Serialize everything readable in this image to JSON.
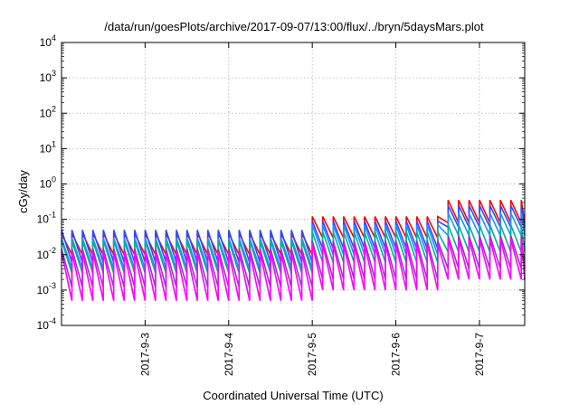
{
  "chart_data": {
    "type": "line",
    "title": "/data/run/goesPlots/archive/2017-09-07/13:00/flux/../bryn/5daysMars.plot",
    "xlabel": "Coordinated Universal Time (UTC)",
    "ylabel": "cGy/day",
    "yscale": "log",
    "ylim": [
      0.0001,
      10000
    ],
    "y_ticks": [
      {
        "base": "10",
        "exp": "-4",
        "value": 0.0001
      },
      {
        "base": "10",
        "exp": "-3",
        "value": 0.001
      },
      {
        "base": "10",
        "exp": "-2",
        "value": 0.01
      },
      {
        "base": "10",
        "exp": "-1",
        "value": 0.1
      },
      {
        "base": "10",
        "exp": "0",
        "value": 1
      },
      {
        "base": "10",
        "exp": "1",
        "value": 10
      },
      {
        "base": "10",
        "exp": "2",
        "value": 100
      },
      {
        "base": "10",
        "exp": "3",
        "value": 1000
      },
      {
        "base": "10",
        "exp": "4",
        "value": 10000
      }
    ],
    "xlim": [
      "2017-09-02 00:00",
      "2017-09-07 13:00"
    ],
    "x_ticks": [
      "2017-9-3",
      "2017-9-4",
      "2017-9-5",
      "2017-9-6",
      "2017-9-7"
    ],
    "grid": true,
    "sawtooth_period_hours": 3,
    "series": [
      {
        "color": "#ff0000",
        "step_hours": [
          0,
          72,
          110
        ],
        "peak": [
          0.04,
          0.12,
          0.35
        ],
        "trough": [
          0.01,
          0.03,
          0.08
        ]
      },
      {
        "color": "#2f48ff",
        "step_hours": [
          0,
          72,
          110
        ],
        "peak": [
          0.05,
          0.09,
          0.25
        ],
        "trough": [
          0.006,
          0.015,
          0.06
        ]
      },
      {
        "color": "#1e90ff",
        "step_hours": [
          0,
          72,
          110
        ],
        "peak": [
          0.03,
          0.07,
          0.15
        ],
        "trough": [
          0.004,
          0.01,
          0.035
        ]
      },
      {
        "color": "#00b09a",
        "step_hours": [
          0,
          72,
          110
        ],
        "peak": [
          0.025,
          0.045,
          0.07
        ],
        "trough": [
          0.003,
          0.006,
          0.012
        ]
      },
      {
        "color": "#9a30d0",
        "step_hours": [
          0,
          72,
          110
        ],
        "peak": [
          0.015,
          0.025,
          0.035
        ],
        "trough": [
          0.0012,
          0.002,
          0.004
        ]
      },
      {
        "color": "#ff00ff",
        "step_hours": [
          0,
          72,
          110
        ],
        "peak": [
          0.012,
          0.02,
          0.028
        ],
        "trough": [
          0.0005,
          0.001,
          0.002
        ]
      }
    ]
  }
}
